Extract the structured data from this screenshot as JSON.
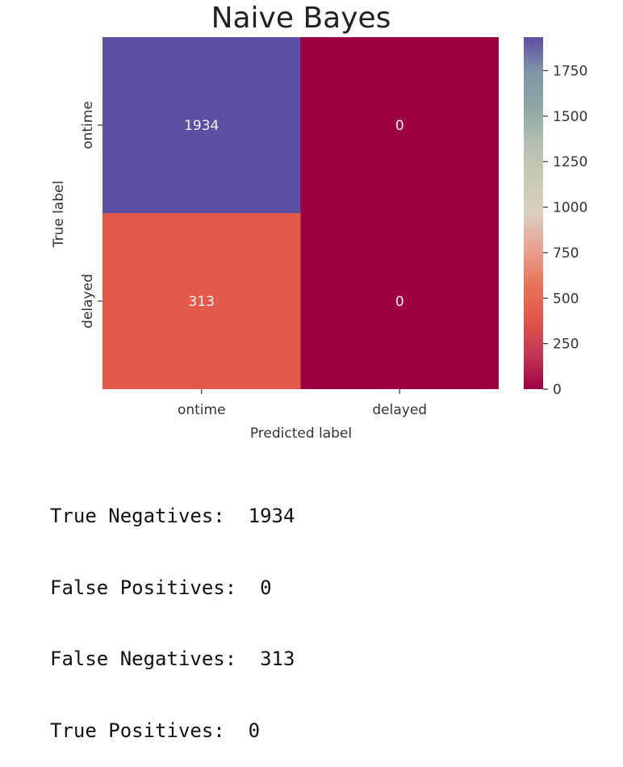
{
  "chart_data": {
    "type": "heatmap",
    "title": "Naive Bayes",
    "xlabel": "Predicted label",
    "ylabel": "True label",
    "x_categories": [
      "ontime",
      "delayed"
    ],
    "y_categories": [
      "ontime",
      "delayed"
    ],
    "matrix": [
      [
        1934,
        0
      ],
      [
        313,
        0
      ]
    ],
    "colormap": "Spectral",
    "colorbar": {
      "min": 0,
      "max": 1934,
      "ticks": [
        0,
        250,
        500,
        750,
        1000,
        1250,
        1500,
        1750
      ],
      "tick_labels": [
        "0",
        "250",
        "500",
        "750",
        "1000",
        "1250",
        "1500",
        "1750"
      ]
    },
    "colors": {
      "stops": [
        "#9e0142",
        "#d53e4f",
        "#f46d43",
        "#fdae61",
        "#fee08b",
        "#ffffbf",
        "#e6f598",
        "#abdda4",
        "#66c2a5",
        "#3288bd",
        "#5e4fa2"
      ],
      "faded_stops": [
        "#9e0142",
        "#c43855",
        "#e2564a",
        "#e8755a",
        "#e9a191",
        "#dbcfc2",
        "#c9cbb3",
        "#b2bfb1",
        "#8ea8a4",
        "#7f96a9",
        "#5e4fa2"
      ],
      "cell_1934": "#5e4fa2",
      "cell_313": "#e35a4a",
      "cell_0": "#9e0142",
      "annotation_text": "#f2f2f2"
    }
  },
  "stats": {
    "lines": [
      "True Negatives:  1934",
      "False Positives:  0",
      "False Negatives:  313",
      "True Positives:  0"
    ]
  }
}
